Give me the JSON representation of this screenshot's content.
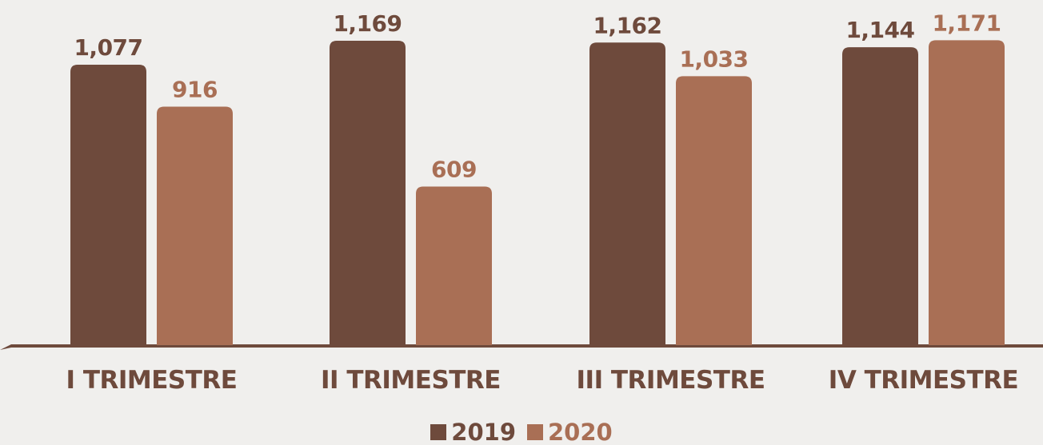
{
  "colors": {
    "background": "#f0efed",
    "series_2019": "#6e4a3c",
    "series_2020": "#a96f55",
    "axis": "#6e4a3c",
    "category_text": "#6e4a3c"
  },
  "chart_data": {
    "type": "bar",
    "title": "",
    "xlabel": "",
    "ylabel": "",
    "categories": [
      "I TRIMESTRE",
      "II TRIMESTRE",
      "III TRIMESTRE",
      "IV TRIMESTRE"
    ],
    "series": [
      {
        "name": "2019",
        "values": [
          1077,
          1169,
          1162,
          1144
        ],
        "labels": [
          "1,077",
          "1,169",
          "1,162",
          "1,144"
        ]
      },
      {
        "name": "2020",
        "values": [
          916,
          609,
          1033,
          1171
        ],
        "labels": [
          "916",
          "609",
          "1,033",
          "1,171"
        ]
      }
    ],
    "ylim": [
      0,
      1250
    ],
    "grid": false,
    "legend_position": "bottom-center"
  }
}
